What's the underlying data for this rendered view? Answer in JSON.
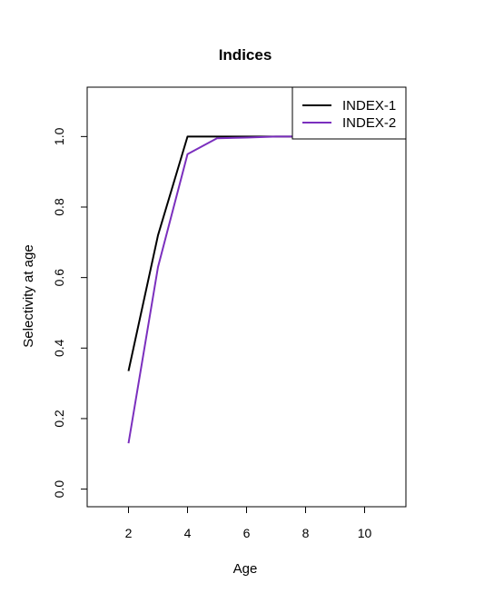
{
  "chart_data": {
    "type": "line",
    "title": "Indices",
    "xlabel": "Age",
    "ylabel": "Selectivity at age",
    "xlim": [
      0.6,
      11.4
    ],
    "ylim": [
      -0.05,
      1.14
    ],
    "xticks": [
      2,
      4,
      6,
      8,
      10
    ],
    "yticks": [
      0.0,
      0.2,
      0.4,
      0.6,
      0.8,
      1.0
    ],
    "xtick_labels": [
      "2",
      "4",
      "6",
      "8",
      "10"
    ],
    "ytick_labels": [
      "0.0",
      "0.2",
      "0.4",
      "0.6",
      "0.8",
      "1.0"
    ],
    "legend_position": "top-right",
    "grid": false,
    "series": [
      {
        "name": "INDEX-1",
        "color": "#000000",
        "x": [
          2,
          3,
          4,
          5,
          6,
          7,
          8
        ],
        "values": [
          0.335,
          0.72,
          1.0,
          1.0,
          1.0,
          1.0,
          1.0
        ]
      },
      {
        "name": "INDEX-2",
        "color": "#7b2fbe",
        "x": [
          2,
          3,
          4,
          5,
          6,
          7,
          8
        ],
        "values": [
          0.13,
          0.63,
          0.95,
          0.995,
          0.997,
          1.0,
          1.0
        ]
      }
    ]
  }
}
